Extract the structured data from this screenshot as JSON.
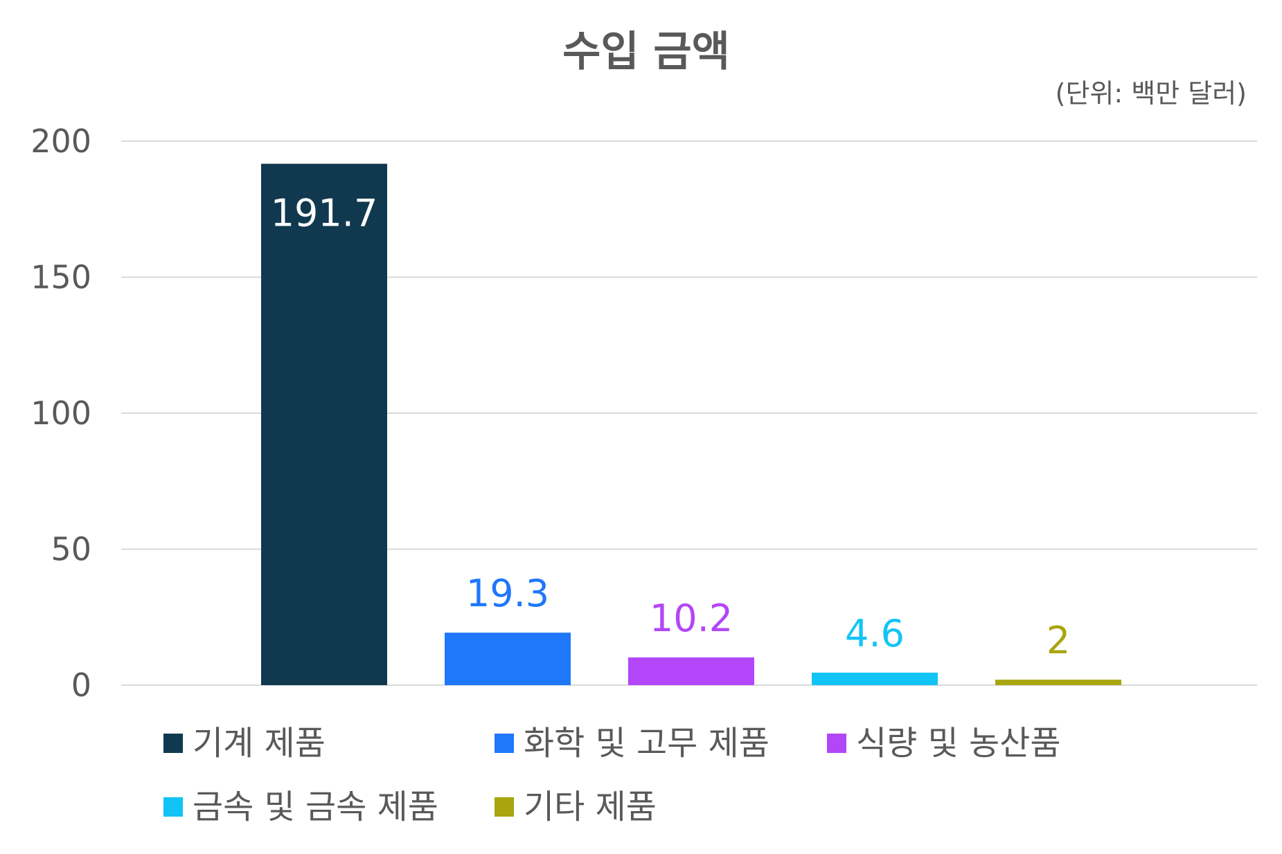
{
  "chart_data": {
    "type": "bar",
    "title": "수입 금액",
    "unit_note": "(단위: 백만 달러)",
    "categories": [
      "기계 제품",
      "화학 및 고무 제품",
      "식량 및 농산품",
      "금속 및 금속 제품",
      "기타 제품"
    ],
    "values": [
      191.7,
      19.3,
      10.2,
      4.6,
      2
    ],
    "value_labels": [
      "191.7",
      "19.3",
      "10.2",
      "4.6",
      "2"
    ],
    "colors": [
      "#10394f",
      "#1f77fa",
      "#b246f8",
      "#12c4f5",
      "#a8a50f"
    ],
    "label_colors": [
      "#ffffff",
      "#1f77fa",
      "#b246f8",
      "#12c4f5",
      "#a8a50f"
    ],
    "label_inside": [
      true,
      false,
      false,
      false,
      false
    ],
    "ylim": [
      0,
      200
    ],
    "yticks": [
      0,
      50,
      100,
      150,
      200
    ],
    "ytick_labels": [
      "0",
      "50",
      "100",
      "150",
      "200"
    ],
    "grid": true,
    "legend_position": "bottom",
    "xlabel": "",
    "ylabel": ""
  }
}
